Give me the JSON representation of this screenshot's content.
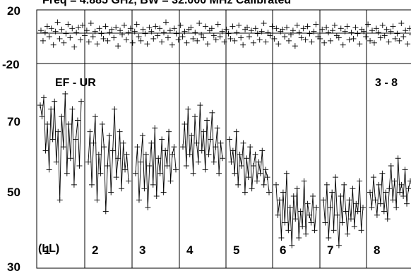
{
  "chart_data": {
    "type": "line",
    "header_text": "Freq = 4.885 GHz, BW = 32.000 MHz  Calibrated",
    "top_strip": {
      "ylim": [
        -28,
        24
      ],
      "yticks": [
        "20",
        "-20"
      ],
      "description_values_note": "closure residuals",
      "y": [
        4,
        -6,
        2,
        8,
        -2,
        6,
        -10,
        3,
        12,
        -4,
        5,
        -8,
        1,
        10,
        -3,
        6,
        -12,
        2,
        7,
        -5,
        9,
        -1,
        4,
        -7,
        11,
        -2,
        3,
        -9,
        6,
        1,
        -4,
        8,
        -6,
        2,
        5,
        -3,
        7,
        -11,
        4,
        0,
        9,
        -5,
        2,
        6,
        -8,
        3,
        10,
        -2,
        -6,
        5,
        1,
        -9,
        7,
        3,
        -4,
        8,
        -1,
        6,
        -7,
        2,
        12,
        -3,
        4,
        -10,
        6,
        1,
        -5,
        9,
        -2,
        3,
        -8,
        5,
        7,
        -4,
        2,
        -6,
        11,
        0,
        -3,
        8,
        -9,
        4,
        6,
        -1,
        -5,
        10,
        -2,
        3,
        -7,
        5,
        1,
        -4,
        8,
        -6,
        2,
        9,
        -3,
        -10,
        5,
        7,
        -2,
        4,
        -8,
        6,
        1,
        -5,
        3,
        11,
        -7,
        2,
        -1,
        8,
        -4,
        6,
        -9,
        3,
        5,
        -2,
        7,
        -6,
        0,
        4,
        -11,
        9,
        2,
        -3,
        6,
        -5,
        8,
        1,
        -7,
        3,
        10,
        -2,
        -4,
        5,
        -8,
        7,
        2,
        -6,
        4,
        9,
        -1,
        -3,
        6,
        -10,
        3,
        8,
        -5,
        2,
        -4,
        7,
        1,
        -9,
        5,
        3,
        -2,
        10,
        -6,
        4,
        -8,
        6,
        2,
        -3,
        9,
        -1,
        5,
        -7,
        3,
        8,
        -4,
        1,
        -6,
        11,
        -2,
        4,
        -9,
        6,
        0,
        7
      ]
    },
    "main_plot": {
      "ylim": [
        30,
        84
      ],
      "yticks": [
        "70",
        "50",
        "30"
      ],
      "baseline_label": "EF - UR",
      "subbands_label": "3 - 8",
      "polarization": "(LL)",
      "panels": [
        "1",
        "2",
        "3",
        "4",
        "5",
        "6",
        "7",
        "8"
      ],
      "y": [
        [
          73,
          70,
          75,
          61,
          68,
          56,
          72,
          64,
          74,
          58,
          66,
          48,
          70,
          62,
          76,
          55,
          68,
          59,
          72,
          52,
          64,
          69,
          57,
          74
        ],
        [
          58,
          66,
          52,
          63,
          70,
          48,
          60,
          55,
          68,
          62,
          45,
          57,
          65,
          50,
          61,
          72,
          54,
          59,
          66,
          51,
          63,
          56,
          60,
          53
        ],
        [
          55,
          62,
          48,
          58,
          65,
          51,
          60,
          46,
          57,
          63,
          52,
          67,
          49,
          59,
          55,
          64,
          50,
          61,
          57,
          66,
          53,
          60,
          62,
          56
        ],
        [
          62,
          68,
          57,
          72,
          60,
          65,
          55,
          70,
          63,
          58,
          73,
          61,
          66,
          56,
          69,
          60,
          64,
          71,
          58,
          62,
          67,
          55,
          63,
          59
        ],
        [
          64,
          58,
          61,
          55,
          66,
          52,
          60,
          57,
          63,
          50,
          59,
          54,
          62,
          51,
          57,
          60,
          53,
          58,
          55,
          61,
          52,
          56,
          54,
          50
        ],
        [
          52,
          44,
          48,
          38,
          50,
          42,
          55,
          40,
          46,
          36,
          49,
          43,
          51,
          38,
          45,
          41,
          53,
          39,
          47,
          44,
          42,
          49,
          40,
          46
        ],
        [
          48,
          42,
          52,
          38,
          46,
          50,
          40,
          54,
          44,
          36,
          49,
          42,
          52,
          45,
          39,
          48,
          43,
          51,
          41,
          47,
          45,
          53,
          40,
          46
        ],
        [
          50,
          46,
          54,
          48,
          44,
          52,
          47,
          55,
          45,
          50,
          43,
          51,
          57,
          48,
          53,
          46,
          59,
          50,
          52,
          49,
          56,
          47,
          51,
          53
        ]
      ]
    }
  }
}
